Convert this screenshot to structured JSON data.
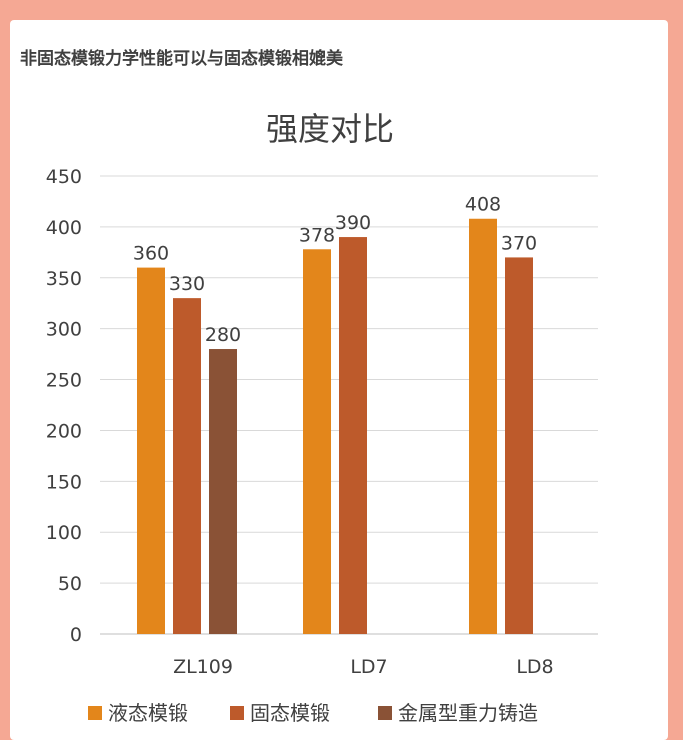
{
  "card": {
    "title": "非固态模锻力学性能可以与固态模锻相媲美"
  },
  "chart_data": {
    "type": "bar",
    "title": "强度对比",
    "categories": [
      "ZL109",
      "LD7",
      "LD8"
    ],
    "series": [
      {
        "name": "液态模锻",
        "color": "#e3861b",
        "values": [
          360,
          378,
          408
        ]
      },
      {
        "name": "固态模锻",
        "color": "#bd5a2b",
        "values": [
          330,
          390,
          370
        ]
      },
      {
        "name": "金属型重力铸造",
        "color": "#8a5236",
        "values": [
          280,
          null,
          null
        ]
      }
    ],
    "ylim": [
      0,
      450
    ],
    "yticks": [
      0,
      50,
      100,
      150,
      200,
      250,
      300,
      350,
      400,
      450
    ],
    "grid": true,
    "legend": "bottom",
    "data_labels": true
  }
}
